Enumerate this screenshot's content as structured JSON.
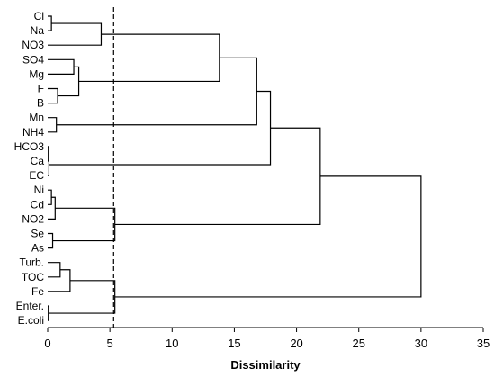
{
  "chart_data": {
    "type": "dendrogram",
    "xlabel": "Dissimilarity",
    "xlim": [
      0,
      35
    ],
    "xticks": [
      0,
      5,
      10,
      15,
      20,
      25,
      30,
      35
    ],
    "cutoff": 5.3,
    "leaves": [
      "Cl",
      "Na",
      "NO3",
      "SO4",
      "Mg",
      "F",
      "B",
      "Mn",
      "NH4",
      "HCO3",
      "Ca",
      "EC",
      "Ni",
      "Cd",
      "NO2",
      "Se",
      "As",
      "Turb.",
      "TOC",
      "Fe",
      "Enter.",
      "E.coli"
    ],
    "merges": [
      {
        "a": "HCO3",
        "b": "Ca",
        "height": 0.05
      },
      {
        "a": "Ca",
        "b": "EC",
        "height": 0.1
      },
      {
        "a": "Enter.",
        "b": "E.coli",
        "height": 0.05
      },
      {
        "a": "Ni",
        "b": "Cd",
        "height": 0.3
      },
      {
        "a": "Cl",
        "b": "Na",
        "height": 0.3
      },
      {
        "a": "Se",
        "b": "As",
        "height": 0.4
      },
      {
        "a": "Ni/Cd",
        "b": "NO2",
        "height": 0.6
      },
      {
        "a": "Mn",
        "b": "NH4",
        "height": 0.7
      },
      {
        "a": "F",
        "b": "B",
        "height": 0.8
      },
      {
        "a": "Turb.",
        "b": "TOC",
        "height": 1.0
      },
      {
        "a": "Turb./TOC",
        "b": "Fe",
        "height": 1.8
      },
      {
        "a": "SO4",
        "b": "Mg",
        "height": 2.1
      },
      {
        "a": "SO4/Mg",
        "b": "F/B",
        "height": 2.5
      },
      {
        "a": "Cl/Na",
        "b": "NO3",
        "height": 4.3
      },
      {
        "a": "Ni/Cd/NO2",
        "b": "Se/As",
        "height": 5.4
      },
      {
        "a": "Turb./TOC/Fe",
        "b": "Enter./E.coli",
        "height": 5.4
      },
      {
        "a": "Cl/Na/NO3",
        "b": "SO4/Mg/F/B",
        "height": 13.8
      },
      {
        "a": "Cl..B",
        "b": "Mn/NH4",
        "height": 16.8
      },
      {
        "a": "Cl..NH4",
        "b": "HCO3/Ca/EC",
        "height": 17.9
      },
      {
        "a": "Cl..EC",
        "b": "Ni..As",
        "height": 21.9
      },
      {
        "a": "Cl..As",
        "b": "Turb..E.coli",
        "height": 30.0
      }
    ]
  }
}
